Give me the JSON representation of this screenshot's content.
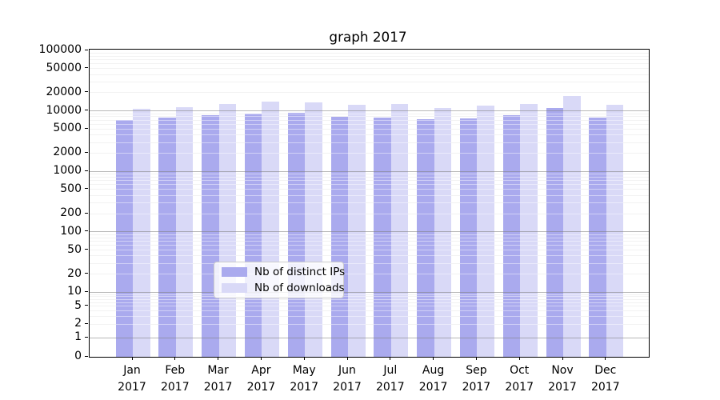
{
  "chart_data": {
    "type": "bar",
    "title": "graph 2017",
    "xlabel": "",
    "ylabel": "",
    "yscale": "log-symlog (0 at axis bottom)",
    "ylim": [
      0,
      100000
    ],
    "yticks": [
      100000,
      50000,
      20000,
      10000,
      5000,
      2000,
      1000,
      500,
      200,
      100,
      50,
      20,
      10,
      5,
      2,
      1,
      0
    ],
    "grid": "horizontal major and minor gridlines, drawn over bars",
    "legend_position": "lower center",
    "categories": [
      {
        "month": "Jan",
        "year": "2017"
      },
      {
        "month": "Feb",
        "year": "2017"
      },
      {
        "month": "Mar",
        "year": "2017"
      },
      {
        "month": "Apr",
        "year": "2017"
      },
      {
        "month": "May",
        "year": "2017"
      },
      {
        "month": "Jun",
        "year": "2017"
      },
      {
        "month": "Jul",
        "year": "2017"
      },
      {
        "month": "Aug",
        "year": "2017"
      },
      {
        "month": "Sep",
        "year": "2017"
      },
      {
        "month": "Oct",
        "year": "2017"
      },
      {
        "month": "Nov",
        "year": "2017"
      },
      {
        "month": "Dec",
        "year": "2017"
      }
    ],
    "series": [
      {
        "name": "Nb of distinct IPs",
        "color": "#aaaaee",
        "values": [
          7000,
          7700,
          8400,
          8900,
          9300,
          8100,
          7700,
          7200,
          7600,
          8400,
          11100,
          7800
        ]
      },
      {
        "name": "Nb of downloads",
        "color": "#d9d9f7",
        "values": [
          10700,
          11400,
          13100,
          14100,
          13800,
          12600,
          12900,
          11200,
          12300,
          12900,
          17500,
          12600
        ]
      }
    ]
  }
}
